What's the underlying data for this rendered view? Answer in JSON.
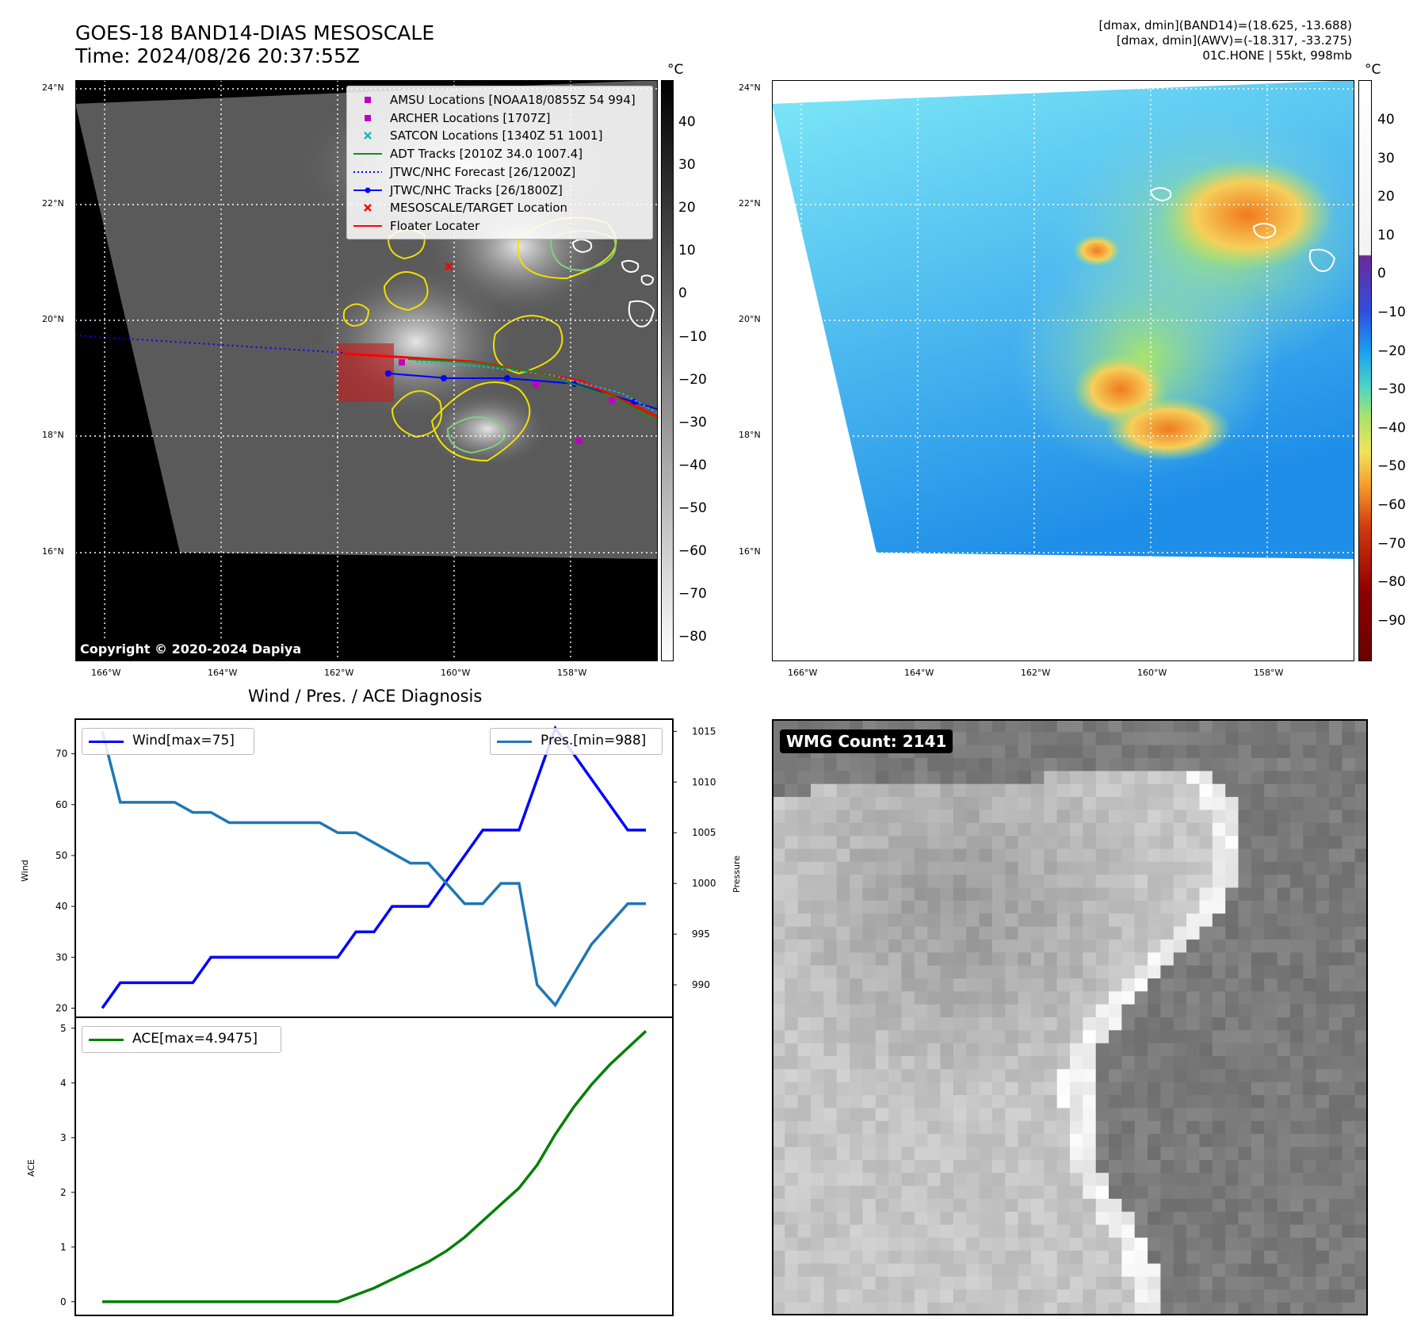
{
  "header": {
    "title_line1": "GOES-18 BAND14-DIAS MESOSCALE",
    "title_line2": "Time: 2024/08/26 20:37:55Z",
    "info_line1": "[dmax, dmin](BAND14)=(18.625, -13.688)",
    "info_line2": "[dmax, dmin](AWV)=(-18.317, -33.275)",
    "info_line3": "01C.HONE | 55kt, 998mb"
  },
  "map": {
    "lat_labels": [
      "24°N",
      "22°N",
      "20°N",
      "18°N",
      "16°N"
    ],
    "lon_labels": [
      "166°W",
      "164°W",
      "162°W",
      "160°W",
      "158°W"
    ],
    "copyright": "Copyright © 2020-2024 Dapiya",
    "legend": [
      {
        "label": "AMSU Locations [NOAA18/0855Z 54 994]",
        "marker": "square",
        "color": "#c000c0"
      },
      {
        "label": "ARCHER Locations [1707Z]",
        "marker": "square",
        "color": "#c000c0"
      },
      {
        "label": "SATCON Locations [1340Z 51 1001]",
        "marker": "x",
        "color": "#17b8b8"
      },
      {
        "label": "ADT Tracks [2010Z 34.0 1007.4]",
        "marker": "line",
        "color": "#1a8a1a"
      },
      {
        "label": "JTWC/NHC Forecast [26/1200Z]",
        "marker": "dotted",
        "color": "#0000ff"
      },
      {
        "label": "JTWC/NHC Tracks [26/1800Z]",
        "marker": "line-dot",
        "color": "#0000ff"
      },
      {
        "label": "MESOSCALE/TARGET Location",
        "marker": "x",
        "color": "#ff0000"
      },
      {
        "label": "Floater Locater",
        "marker": "line",
        "color": "#ff0000"
      }
    ]
  },
  "colorbar_left": {
    "unit": "°C",
    "ticks": [
      "40",
      "30",
      "20",
      "10",
      "0",
      "−10",
      "−20",
      "−30",
      "−40",
      "−50",
      "−60",
      "−70",
      "−80"
    ]
  },
  "colorbar_right": {
    "unit": "°C",
    "ticks": [
      "40",
      "30",
      "20",
      "10",
      "0",
      "−10",
      "−20",
      "−30",
      "−40",
      "−50",
      "−60",
      "−70",
      "−80",
      "−90"
    ]
  },
  "wmg": {
    "label": "WMG Count: 2141"
  },
  "chart_data": [
    {
      "type": "line",
      "title": "Wind / Pres. / ACE Diagnosis",
      "ylabel": "Wind",
      "y2label": "Pressure",
      "ylim": [
        18.2,
        76.8
      ],
      "y2lim": [
        986.8,
        1016.2
      ],
      "series": [
        {
          "name": "Wind[max=75]",
          "axis": "left",
          "color": "#0000ff",
          "values": [
            20,
            25,
            25,
            25,
            25,
            25,
            30,
            30,
            30,
            30,
            30,
            30,
            30,
            30,
            35,
            35,
            40,
            40,
            40,
            45,
            50,
            55,
            55,
            55,
            65,
            75,
            70,
            65,
            60,
            55,
            55
          ]
        },
        {
          "name": "Pres.[min=988]",
          "axis": "right",
          "color": "#1f77b4",
          "values": [
            1015,
            1008,
            1008,
            1008,
            1008,
            1007,
            1007,
            1006,
            1006,
            1006,
            1006,
            1006,
            1006,
            1005,
            1005,
            1004,
            1003,
            1002,
            1002,
            1000,
            998,
            998,
            1000,
            1000,
            990,
            988,
            991,
            994,
            996,
            998,
            998
          ]
        }
      ],
      "yticks": [
        "20",
        "30",
        "40",
        "50",
        "60",
        "70"
      ],
      "y2ticks": [
        "990",
        "995",
        "1000",
        "1005",
        "1010",
        "1015"
      ]
    },
    {
      "type": "line",
      "ylabel": "ACE",
      "ylim": [
        -0.25,
        5.2
      ],
      "series": [
        {
          "name": "ACE[max=4.9475]",
          "color": "#008000",
          "values": [
            0,
            0,
            0,
            0,
            0,
            0,
            0,
            0,
            0,
            0,
            0,
            0,
            0,
            0,
            0.125,
            0.25,
            0.41,
            0.57,
            0.73,
            0.93,
            1.18,
            1.48,
            1.78,
            2.08,
            2.5,
            3.06,
            3.55,
            3.97,
            4.33,
            4.64,
            4.9475
          ]
        }
      ],
      "yticks": [
        "0",
        "1",
        "2",
        "3",
        "4",
        "5"
      ]
    }
  ]
}
